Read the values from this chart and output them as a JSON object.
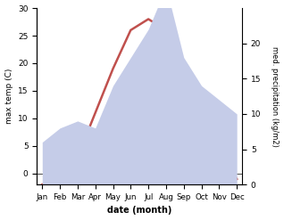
{
  "months": [
    "Jan",
    "Feb",
    "Mar",
    "Apr",
    "May",
    "Jun",
    "Jul",
    "Aug",
    "Sep",
    "Oct",
    "Nov",
    "Dec"
  ],
  "temp_values": [
    -2,
    -1,
    3,
    11,
    19,
    26,
    28,
    26,
    20,
    12,
    4,
    -1
  ],
  "precip_values": [
    6,
    8,
    9,
    8,
    14,
    18,
    22,
    28,
    18,
    14,
    12,
    10
  ],
  "temp_color": "#c0504d",
  "precip_fill_color": "#c5cce8",
  "bg_color": "#ffffff",
  "temp_ylim": [
    -2,
    30
  ],
  "temp_yticks": [
    0,
    5,
    10,
    15,
    20,
    25,
    30
  ],
  "precip_ylim": [
    0,
    25
  ],
  "precip_yticks": [
    0,
    5,
    10,
    15,
    20
  ],
  "xlabel": "date (month)",
  "ylabel_left": "max temp (C)",
  "ylabel_right": "med. precipitation (kg/m2)"
}
